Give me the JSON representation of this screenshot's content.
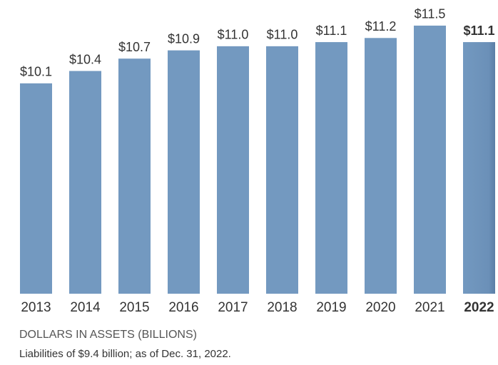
{
  "chart_data": {
    "type": "bar",
    "categories": [
      "2013",
      "2014",
      "2015",
      "2016",
      "2017",
      "2018",
      "2019",
      "2020",
      "2021",
      "2022"
    ],
    "values": [
      10.1,
      10.4,
      10.7,
      10.9,
      11.0,
      11.0,
      11.1,
      11.2,
      11.5,
      11.1
    ],
    "value_labels": [
      "$10.1",
      "$10.4",
      "$10.7",
      "$10.9",
      "$11.0",
      "$11.0",
      "$11.1",
      "$11.2",
      "$11.5",
      "$11.1"
    ],
    "color": "#7399c0",
    "ylim": [
      5,
      12
    ],
    "axis_label": "DOLLARS IN ASSETS (BILLIONS)",
    "note": "Liabilities of $9.4 billion; as of Dec. 31, 2022."
  }
}
